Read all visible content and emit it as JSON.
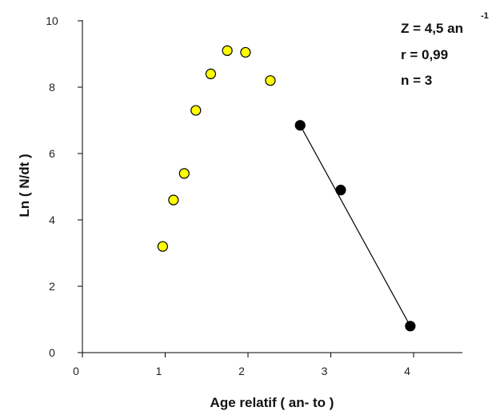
{
  "chart_data": {
    "type": "scatter",
    "xlabel": "Age relatif ( an- to )",
    "ylabel": "Ln ( N/dt )",
    "xlim": [
      0,
      4.6
    ],
    "ylim": [
      0,
      10
    ],
    "xticks": [
      0,
      1,
      2,
      3,
      4
    ],
    "yticks": [
      0,
      2,
      4,
      6,
      8,
      10
    ],
    "grid": false,
    "series": [
      {
        "marker": "circle",
        "fill": "#ffff00",
        "stroke": "#000000",
        "points": [
          {
            "x": 0.97,
            "y": 3.2
          },
          {
            "x": 1.1,
            "y": 4.6
          },
          {
            "x": 1.23,
            "y": 5.4
          },
          {
            "x": 1.37,
            "y": 7.3
          },
          {
            "x": 1.55,
            "y": 8.4
          },
          {
            "x": 1.75,
            "y": 9.1
          },
          {
            "x": 1.97,
            "y": 9.05
          },
          {
            "x": 2.27,
            "y": 8.2
          }
        ]
      },
      {
        "marker": "circle",
        "fill": "#000000",
        "stroke": "#000000",
        "points": [
          {
            "x": 2.63,
            "y": 6.85
          },
          {
            "x": 3.12,
            "y": 4.9
          },
          {
            "x": 3.96,
            "y": 0.8
          }
        ]
      }
    ],
    "regression_line": {
      "x1": 2.63,
      "y1": 6.85,
      "x2": 3.96,
      "y2": 0.8,
      "color": "#000000"
    },
    "annotations": {
      "z_label": "Z = 4,5 an",
      "z_exponent": "-1",
      "r_label": "r = 0,99",
      "n_label": "n = 3"
    }
  }
}
